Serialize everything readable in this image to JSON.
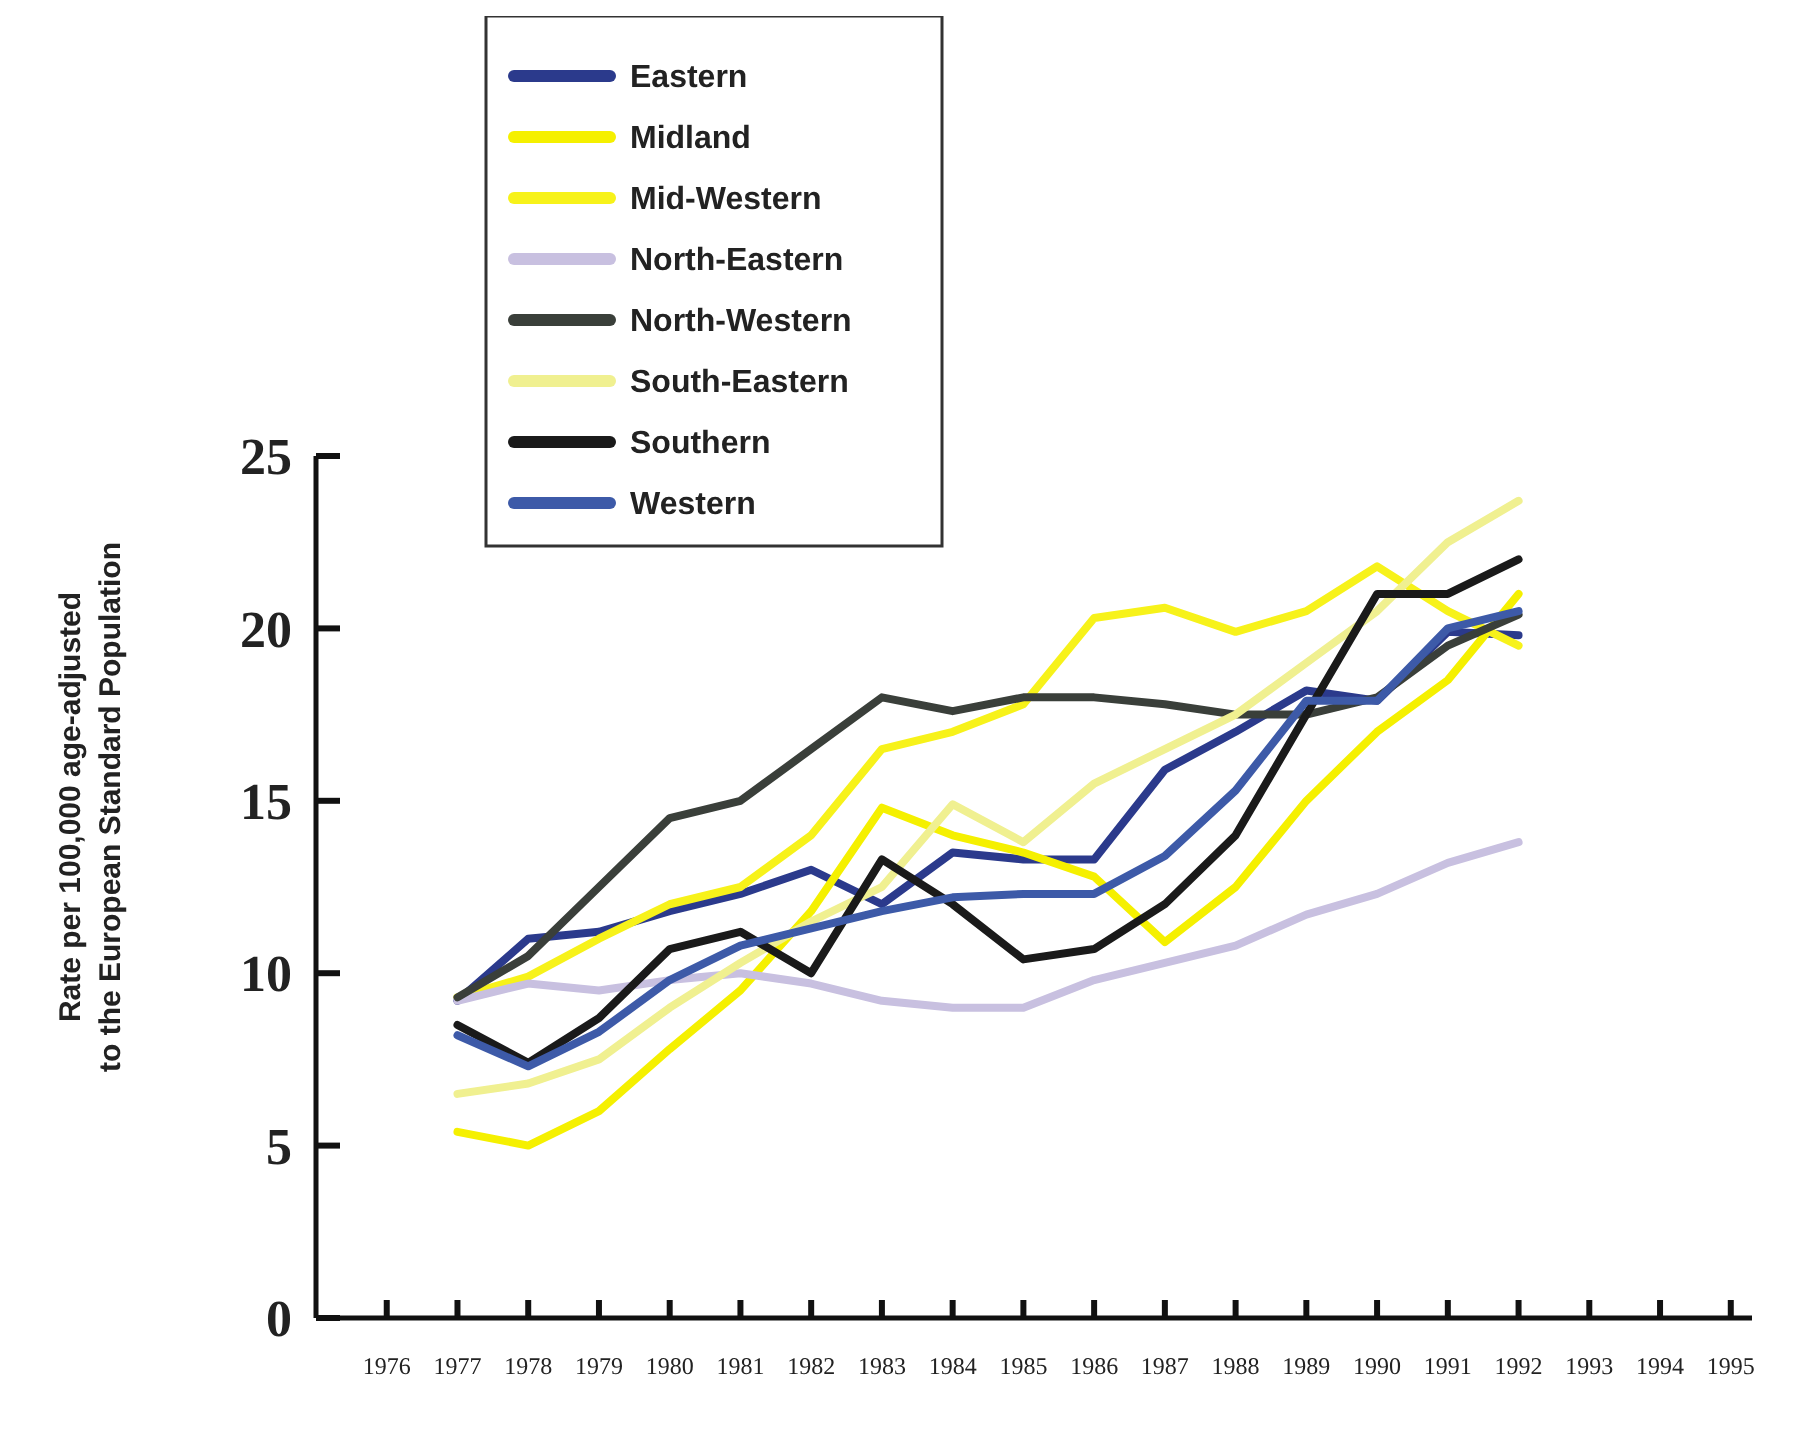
{
  "chart_data": {
    "type": "line",
    "ylabel": "Rate per 100,000 age-adjusted\nto the European Standard Population",
    "x": [
      1977,
      1978,
      1979,
      1980,
      1981,
      1982,
      1983,
      1984,
      1985,
      1986,
      1987,
      1988,
      1989,
      1990,
      1991,
      1992
    ],
    "series": [
      {
        "name": "Eastern",
        "color": "#2b3a8c",
        "values": [
          9.2,
          11.0,
          11.2,
          11.8,
          12.3,
          13.0,
          12.0,
          13.5,
          13.3,
          13.3,
          15.9,
          17.0,
          18.2,
          17.9,
          19.9,
          19.8
        ]
      },
      {
        "name": "Midland",
        "color": "#f5f000",
        "values": [
          5.4,
          5.0,
          6.0,
          7.8,
          9.5,
          11.8,
          14.8,
          14.0,
          13.5,
          12.8,
          10.9,
          12.5,
          15.0,
          17.0,
          18.5,
          21.0
        ]
      },
      {
        "name": "Mid-Western",
        "color": "#f7f21a",
        "values": [
          9.3,
          9.9,
          11.0,
          12.0,
          12.5,
          14.0,
          16.5,
          17.0,
          17.8,
          20.3,
          20.6,
          19.9,
          20.5,
          21.8,
          20.5,
          19.5
        ]
      },
      {
        "name": "North-Eastern",
        "color": "#c8c0e0",
        "values": [
          9.2,
          9.7,
          9.5,
          9.8,
          10.0,
          9.7,
          9.2,
          9.0,
          9.0,
          9.8,
          10.3,
          10.8,
          11.7,
          12.3,
          13.2,
          13.8
        ]
      },
      {
        "name": "North-Western",
        "color": "#3a3f3a",
        "values": [
          9.3,
          10.5,
          12.5,
          14.5,
          15.0,
          16.5,
          18.0,
          17.6,
          18.0,
          18.0,
          17.8,
          17.5,
          17.5,
          18.0,
          19.5,
          20.4
        ]
      },
      {
        "name": "South-Eastern",
        "color": "#f0f090",
        "values": [
          6.5,
          6.8,
          7.5,
          9.0,
          10.3,
          11.5,
          12.5,
          14.9,
          13.8,
          15.5,
          16.5,
          17.5,
          19.0,
          20.5,
          22.5,
          23.7
        ]
      },
      {
        "name": "Southern",
        "color": "#1a1a1a",
        "values": [
          8.5,
          7.4,
          8.7,
          10.7,
          11.2,
          10.0,
          13.3,
          12.0,
          10.4,
          10.7,
          12.0,
          14.0,
          17.5,
          21.0,
          21.0,
          22.0
        ]
      },
      {
        "name": "Western",
        "color": "#3d5aa8",
        "values": [
          8.2,
          7.3,
          8.3,
          9.8,
          10.8,
          11.3,
          11.8,
          12.2,
          12.3,
          12.3,
          13.4,
          15.3,
          17.9,
          17.9,
          20.0,
          20.5
        ]
      }
    ],
    "xlim": [
      1975,
      1995.3
    ],
    "xticks": [
      1976,
      1977,
      1978,
      1979,
      1980,
      1981,
      1982,
      1983,
      1984,
      1985,
      1986,
      1987,
      1988,
      1989,
      1990,
      1991,
      1992,
      1993,
      1994,
      1995
    ],
    "ylim": [
      0,
      25
    ],
    "yticks": [
      0,
      5,
      10,
      15,
      20,
      25
    ],
    "grid": false,
    "legend": "top left",
    "marker": "none",
    "line_style": "solid"
  }
}
